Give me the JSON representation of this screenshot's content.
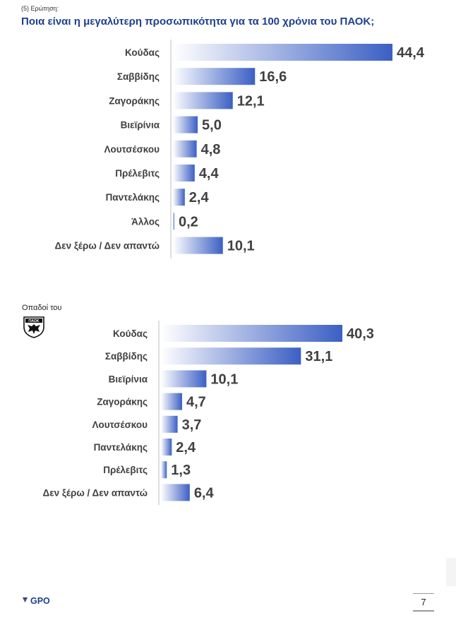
{
  "header": {
    "question_label": "(5) Ερώτηση:",
    "question_title": "Ποια είναι η μεγαλύτερη προσωπικότητα για τα 100 χρόνια του ΠΑΟΚ;"
  },
  "subgroup_label": "Οπαδοί του",
  "crest_text": "ΠΑΟΚ",
  "footer": {
    "brand": "GPO",
    "page_number": "7"
  },
  "colors": {
    "bar_dark": "#3b5fc4",
    "bar_light": "#ffffff",
    "title": "#1f3f8f",
    "text": "#404040"
  },
  "chart_data": [
    {
      "type": "bar",
      "orientation": "horizontal",
      "title": "",
      "categories": [
        "Κούδας",
        "Σαββίδης",
        "Ζαγοράκης",
        "Βιεϊρίνια",
        "Λουτσέσκου",
        "Πρέλεβιτς",
        "Παντελάκης",
        "Άλλος",
        "Δεν ξέρω / Δεν απαντώ"
      ],
      "values": [
        44.4,
        16.6,
        12.1,
        5.0,
        4.8,
        4.4,
        2.4,
        0.2,
        10.1
      ],
      "value_labels": [
        "44,4",
        "16,6",
        "12,1",
        "5,0",
        "4,8",
        "4,4",
        "2,4",
        "0,2",
        "10,1"
      ],
      "xlim": [
        0,
        44.4
      ]
    },
    {
      "type": "bar",
      "orientation": "horizontal",
      "title": "",
      "categories": [
        "Κούδας",
        "Σαββίδης",
        "Βιεϊρίνια",
        "Ζαγοράκης",
        "Λουτσέσκου",
        "Παντελάκης",
        "Πρέλεβιτς",
        "Δεν ξέρω / Δεν απαντώ"
      ],
      "values": [
        40.3,
        31.1,
        10.1,
        4.7,
        3.7,
        2.4,
        1.3,
        6.4
      ],
      "value_labels": [
        "40,3",
        "31,1",
        "10,1",
        "4,7",
        "3,7",
        "2,4",
        "1,3",
        "6,4"
      ],
      "xlim": [
        0,
        40.3
      ]
    }
  ]
}
